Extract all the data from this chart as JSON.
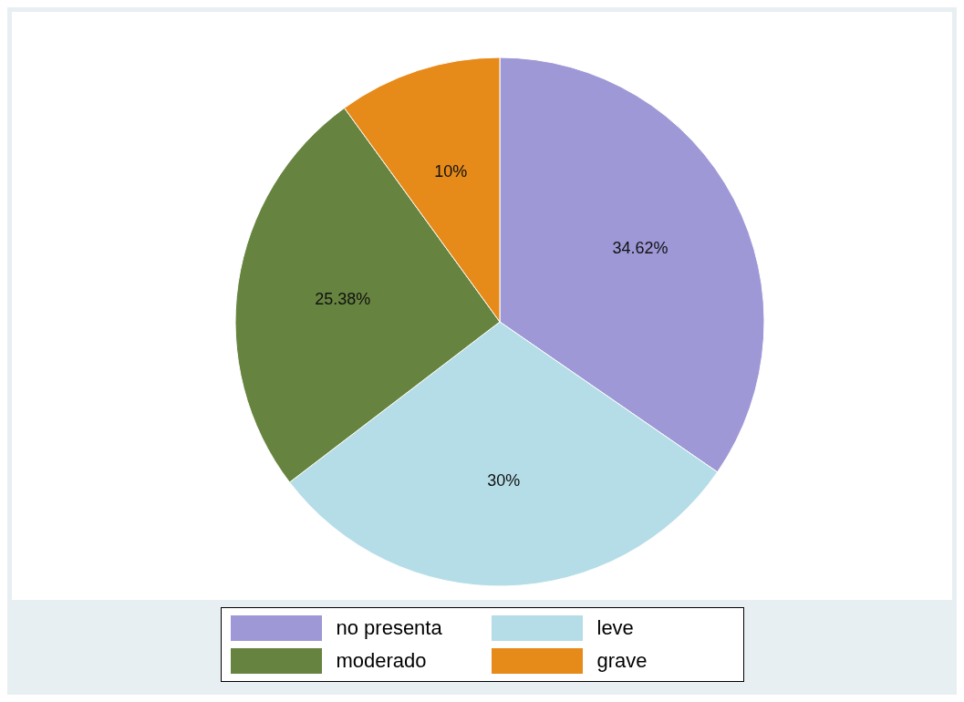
{
  "chart_data": {
    "type": "pie",
    "categories": [
      "no presenta",
      "leve",
      "moderado",
      "grave"
    ],
    "values": [
      34.62,
      30,
      25.38,
      10
    ],
    "colors": [
      "#9e98d6",
      "#b5dde8",
      "#66843f",
      "#e68a19"
    ],
    "value_labels": [
      "34.62%",
      "30%",
      "25.38%",
      "10%"
    ],
    "legend": "bottom"
  }
}
